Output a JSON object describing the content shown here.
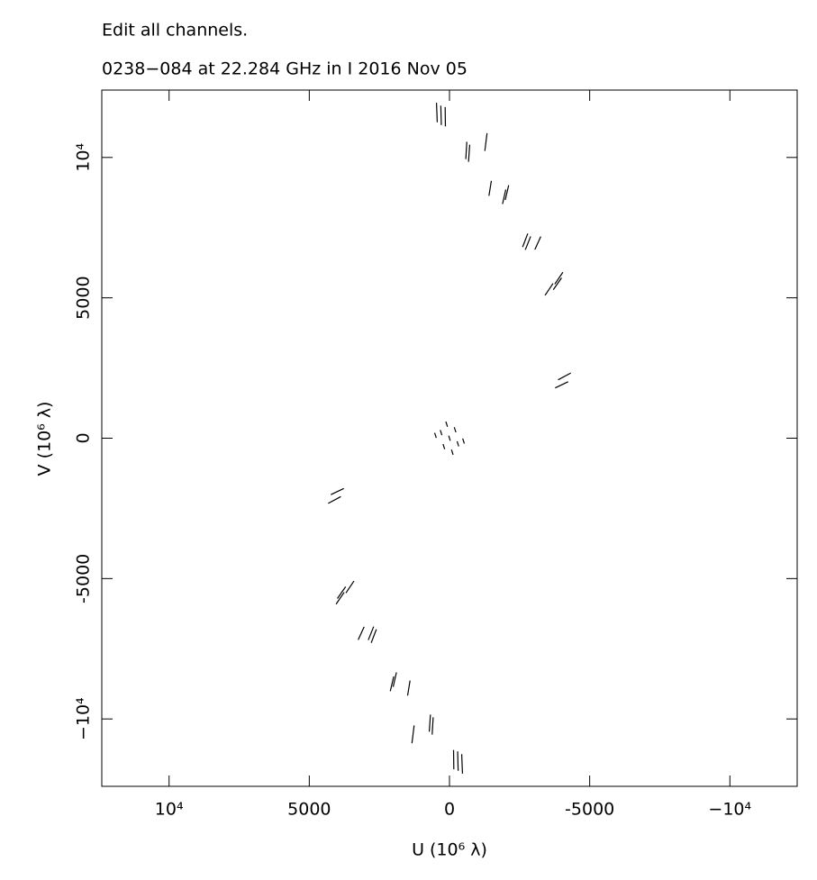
{
  "chart_data": {
    "type": "scatter",
    "title": "Edit all channels.",
    "subtitle": "0238−084 at 22.284 GHz in I  2016 Nov 05",
    "x_label": "U (10⁶ λ)",
    "y_label": "V (10⁶ λ)",
    "xlim": [
      12400,
      -12400
    ],
    "ylim": [
      -12400,
      12400
    ],
    "xticks": [
      {
        "value": 10000,
        "label": "10⁴"
      },
      5000,
      0,
      -5000,
      {
        "value": -10000,
        "label": "−10⁴"
      }
    ],
    "yticks": [
      {
        "value": -10000,
        "label": "−10⁴"
      },
      -5000,
      0,
      5000,
      {
        "value": 10000,
        "label": "10⁴"
      }
    ],
    "series": [
      {
        "color": "#000000",
        "x": [
          300,
          150,
          450,
          -700,
          -600,
          -1300,
          -1450,
          -1950,
          -2050,
          -2800,
          -2700,
          -3150,
          -3550,
          -3900,
          -3850,
          -4000,
          -4100,
          -300,
          -150,
          -450,
          700,
          600,
          1300,
          1450,
          1950,
          2050,
          2800,
          2700,
          3150,
          3550,
          3900,
          3850,
          4000,
          4100,
          300,
          -300,
          100,
          -100,
          500,
          -500,
          0,
          200,
          -200
        ],
        "values": [
          11500,
          11450,
          11600,
          10150,
          10250,
          10550,
          8900,
          8600,
          8750,
          6950,
          7050,
          6950,
          5300,
          5700,
          5500,
          1900,
          2200,
          -11500,
          -11450,
          -11600,
          -10150,
          -10250,
          -10550,
          -8900,
          -8600,
          -8750,
          -6950,
          -7050,
          -6950,
          -5300,
          -5700,
          -5500,
          -1900,
          -2200,
          200,
          -200,
          500,
          -500,
          100,
          -100,
          0,
          -300,
          300
        ]
      }
    ]
  }
}
